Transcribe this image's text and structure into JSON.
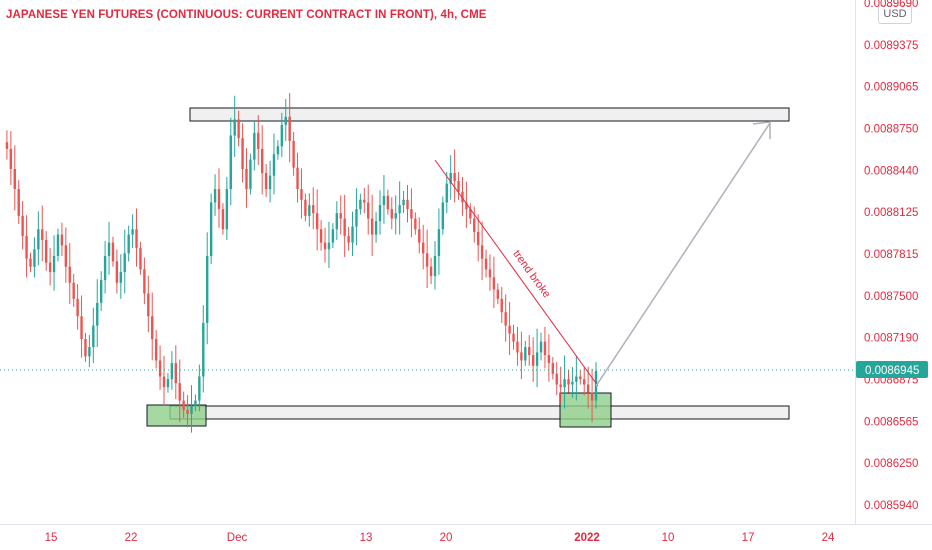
{
  "header": {
    "title": "JAPANESE YEN FUTURES (CONTINUOUS: CURRENT CONTRACT IN FRONT), 4h, CME",
    "currency": "USD"
  },
  "colors": {
    "up": "#26a69a",
    "down": "#ef5350",
    "trendline": "#e5283f",
    "arrow": "#b2b5be",
    "zone_fill": "#f0f0f0",
    "zone_green": "#8fcf8a",
    "price_tag": "#26a69a",
    "axis_text": "#e5283f"
  },
  "chart_data": {
    "type": "candlestick",
    "timeframe": "4h",
    "y_ticks": [
      "0.0089690",
      "0.0089375",
      "0.0089065",
      "0.0088750",
      "0.0088440",
      "0.0088125",
      "0.0087815",
      "0.0087500",
      "0.0087190",
      "0.0086875",
      "0.0086565",
      "0.0086250",
      "0.0085940"
    ],
    "x_ticks": [
      "15",
      "22",
      "Dec",
      "13",
      "20",
      "2022",
      "10",
      "17",
      "24"
    ],
    "last_price": "0.0086945",
    "annotation_text": "trend broke",
    "resistance_zone": [
      0.008869,
      0.008885
    ],
    "support_zone": [
      0.008651,
      0.008665
    ],
    "series": [
      0.008865,
      0.00886,
      0.008845,
      0.00883,
      0.00881,
      0.008795,
      0.008778,
      0.008772,
      0.008785,
      0.0088,
      0.008792,
      0.008775,
      0.008768,
      0.00878,
      0.008796,
      0.008788,
      0.008772,
      0.00876,
      0.008748,
      0.008735,
      0.008718,
      0.008705,
      0.008712,
      0.008728,
      0.008745,
      0.008762,
      0.00878,
      0.00879,
      0.008776,
      0.00876,
      0.008768,
      0.008782,
      0.008796,
      0.0088,
      0.008786,
      0.00877,
      0.008752,
      0.008735,
      0.008718,
      0.008702,
      0.00869,
      0.008682,
      0.008688,
      0.0087,
      0.008685,
      0.008672,
      0.008665,
      0.008662,
      0.008668,
      0.008672,
      0.00869,
      0.00873,
      0.00878,
      0.00882,
      0.00883,
      0.008815,
      0.0088,
      0.00883,
      0.00887,
      0.008882,
      0.008868,
      0.008845,
      0.00883,
      0.008852,
      0.008872,
      0.00886,
      0.008842,
      0.00883,
      0.00884,
      0.008856,
      0.008862,
      0.008878,
      0.008884,
      0.008866,
      0.008846,
      0.00883,
      0.008822,
      0.00881,
      0.008818,
      0.008812,
      0.0088,
      0.00879,
      0.008785,
      0.00879,
      0.0088,
      0.008812,
      0.008808,
      0.008795,
      0.00879,
      0.008802,
      0.008815,
      0.008822,
      0.00882,
      0.008808,
      0.008796,
      0.008806,
      0.008818,
      0.008825,
      0.008815,
      0.008808,
      0.008812,
      0.008818,
      0.008822,
      0.008815,
      0.008808,
      0.0088,
      0.00879,
      0.008782,
      0.008772,
      0.008765,
      0.00878,
      0.0088,
      0.00882,
      0.008834,
      0.008842,
      0.008836,
      0.008828,
      0.00882,
      0.008815,
      0.008808,
      0.008798,
      0.008788,
      0.008778,
      0.00877,
      0.008764,
      0.008755,
      0.008748,
      0.008738,
      0.008728,
      0.008722,
      0.008716,
      0.008708,
      0.008702,
      0.008712,
      0.008706,
      0.008698,
      0.008708,
      0.008716,
      0.008706,
      0.0087,
      0.008692,
      0.008684,
      0.008682,
      0.008688,
      0.008684,
      0.008686,
      0.00869,
      0.008688,
      0.008684,
      0.008678,
      0.008672,
      0.008694
    ]
  }
}
